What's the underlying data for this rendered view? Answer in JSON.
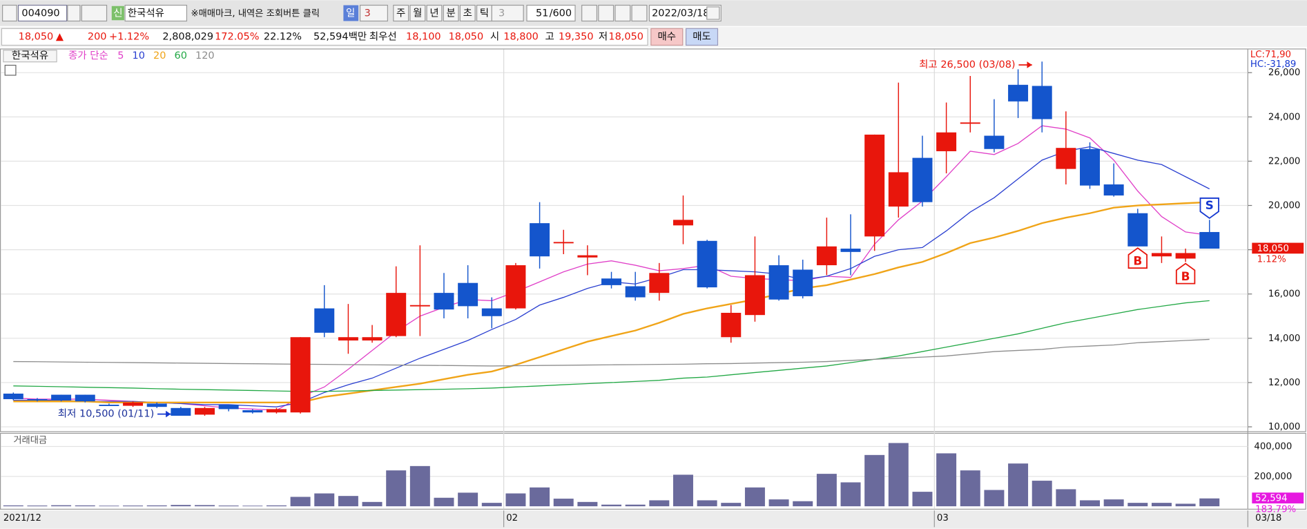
{
  "toolbar": {
    "code": "004090",
    "badge": "신",
    "name": "한국석유",
    "notice": "※매매마크, 내역은 조회버튼 클릭",
    "period": [
      "일",
      "3"
    ],
    "units": [
      "주",
      "월",
      "년",
      "분",
      "초",
      "틱"
    ],
    "unit_count": "3",
    "count": "51",
    "max": "/600",
    "date": "2022/03/18"
  },
  "quote": {
    "price": "18,050",
    "arrow": "▲",
    "change": "200",
    "change_pct": "+1.12%",
    "volume": "2,808,029",
    "volume_ratio": "172.05%",
    "turnover": "22.12%",
    "amount": "52,594백만",
    "best_label": "최우선",
    "ask": "18,100",
    "bid": "18,050",
    "open_label": "시",
    "open": "18,800",
    "high_label": "고",
    "high": "19,350",
    "low_label": "저",
    "low": "18,050",
    "buy": "매수",
    "sell": "매도"
  },
  "chart_data": {
    "type": "candlestick",
    "name": "한국석유",
    "ma_label": "종가 단순",
    "up_color": "#e8160c",
    "down_color": "#1455cc",
    "grid": true,
    "categories": [
      "2021/12",
      null,
      null,
      null,
      null,
      null,
      null,
      null,
      null,
      null,
      null,
      null,
      null,
      null,
      null,
      null,
      null,
      null,
      null,
      null,
      null,
      "02",
      null,
      null,
      null,
      null,
      null,
      null,
      null,
      null,
      null,
      null,
      null,
      null,
      null,
      null,
      null,
      null,
      null,
      "03",
      null,
      null,
      null,
      null,
      null,
      null,
      null,
      null,
      null,
      null,
      null
    ],
    "last_label": "03/18",
    "open": [
      11500,
      11250,
      11450,
      11450,
      11000,
      10950,
      11050,
      10850,
      10550,
      11000,
      10750,
      10650,
      10650,
      15350,
      13900,
      13900,
      14100,
      15450,
      16050,
      16500,
      15350,
      15350,
      19200,
      18300,
      17650,
      16700,
      16350,
      16050,
      19100,
      18400,
      14050,
      15050,
      17300,
      17100,
      17300,
      18050,
      18600,
      19950,
      22150,
      22450,
      23700,
      23150,
      25450,
      25400,
      21650,
      22550,
      20950,
      19650,
      17700,
      17600,
      18800
    ],
    "high": [
      11550,
      11300,
      11450,
      11450,
      11050,
      11150,
      11100,
      10900,
      10900,
      11000,
      10800,
      10850,
      14050,
      16400,
      15550,
      14600,
      17250,
      18200,
      16950,
      17300,
      15850,
      17400,
      20150,
      18900,
      18200,
      17000,
      17000,
      17400,
      20450,
      18450,
      15500,
      18600,
      17750,
      17550,
      19450,
      19600,
      23200,
      25550,
      23150,
      24650,
      25850,
      24800,
      26150,
      26500,
      24250,
      22850,
      21900,
      19850,
      18600,
      18050,
      19350
    ],
    "low": [
      11200,
      11150,
      11150,
      11100,
      10950,
      10900,
      10850,
      10500,
      10500,
      10700,
      10600,
      10600,
      10600,
      14050,
      13300,
      13800,
      14050,
      14100,
      14900,
      14900,
      14450,
      15300,
      17150,
      17800,
      16850,
      16250,
      15700,
      15700,
      18250,
      16250,
      13800,
      14750,
      15700,
      15800,
      16850,
      16850,
      17950,
      19450,
      19950,
      21450,
      23300,
      22400,
      23950,
      23300,
      20950,
      20750,
      20400,
      18150,
      17400,
      17450,
      18050
    ],
    "close": [
      11250,
      11200,
      11200,
      11150,
      10950,
      11100,
      10900,
      10500,
      10850,
      10800,
      10650,
      10800,
      14050,
      14250,
      14050,
      14050,
      16050,
      15500,
      15300,
      15450,
      15000,
      17300,
      17700,
      18350,
      17750,
      16400,
      15850,
      16950,
      19350,
      16300,
      15150,
      16850,
      15750,
      15900,
      18150,
      17900,
      23200,
      21500,
      20150,
      23300,
      23750,
      22550,
      24700,
      23900,
      22600,
      20900,
      20450,
      18150,
      17850,
      17850,
      18050
    ],
    "series": [
      {
        "name": "5",
        "color": "#e040c8",
        "values": [
          11300,
          11250,
          11250,
          11250,
          11200,
          11150,
          11100,
          11050,
          10950,
          10850,
          10800,
          10750,
          11350,
          11800,
          12600,
          13450,
          14300,
          15000,
          15400,
          15750,
          15700,
          16100,
          16550,
          17000,
          17350,
          17500,
          17300,
          17050,
          17150,
          17300,
          16800,
          16700,
          16650,
          16600,
          16800,
          16750,
          18250,
          19350,
          20200,
          21300,
          22450,
          22300,
          22800,
          23600,
          23450,
          23050,
          22050,
          20650,
          19500,
          18800,
          18650
        ]
      },
      {
        "name": "10",
        "color": "#2a3fd0",
        "values": [
          11200,
          11200,
          11200,
          11150,
          11150,
          11150,
          11100,
          11050,
          11000,
          11000,
          10950,
          10900,
          11100,
          11550,
          11900,
          12200,
          12650,
          13100,
          13500,
          13900,
          14400,
          14850,
          15500,
          15850,
          16250,
          16550,
          16450,
          16750,
          17100,
          17100,
          17050,
          17000,
          16900,
          16650,
          16800,
          17150,
          17700,
          18000,
          18100,
          18850,
          19700,
          20350,
          21200,
          22050,
          22450,
          22650,
          22350,
          22050,
          21850,
          21300,
          20750
        ]
      },
      {
        "name": "20",
        "color": "#f0a418",
        "values": [
          11150,
          11150,
          11150,
          11150,
          11100,
          11100,
          11100,
          11100,
          11100,
          11100,
          11100,
          11100,
          11100,
          11350,
          11500,
          11650,
          11800,
          11950,
          12150,
          12350,
          12500,
          12800,
          13150,
          13500,
          13850,
          14100,
          14350,
          14700,
          15100,
          15350,
          15550,
          15750,
          16000,
          16250,
          16400,
          16650,
          16900,
          17200,
          17450,
          17850,
          18300,
          18550,
          18850,
          19200,
          19450,
          19650,
          19900,
          20000,
          20050,
          20100,
          20150
        ]
      },
      {
        "name": "60",
        "color": "#22a845",
        "values": [
          11850,
          11830,
          11810,
          11790,
          11770,
          11750,
          11720,
          11700,
          11680,
          11660,
          11640,
          11620,
          11600,
          11600,
          11620,
          11640,
          11660,
          11680,
          11700,
          11720,
          11750,
          11800,
          11850,
          11900,
          11950,
          12000,
          12050,
          12100,
          12200,
          12250,
          12350,
          12450,
          12550,
          12650,
          12750,
          12900,
          13050,
          13200,
          13400,
          13600,
          13800,
          14000,
          14200,
          14450,
          14700,
          14900,
          15100,
          15300,
          15450,
          15600,
          15700
        ]
      },
      {
        "name": "120",
        "color": "#8c8c8c",
        "values": [
          12950,
          12940,
          12930,
          12920,
          12910,
          12900,
          12890,
          12880,
          12870,
          12860,
          12850,
          12840,
          12830,
          12820,
          12810,
          12800,
          12790,
          12780,
          12770,
          12760,
          12750,
          12760,
          12770,
          12780,
          12790,
          12800,
          12810,
          12820,
          12830,
          12850,
          12860,
          12880,
          12900,
          12920,
          12950,
          13000,
          13050,
          13100,
          13150,
          13200,
          13300,
          13400,
          13450,
          13500,
          13600,
          13650,
          13700,
          13800,
          13850,
          13900,
          13950
        ]
      }
    ],
    "ylim": [
      9800,
      27050
    ],
    "yticks": [
      {
        "value": 10000,
        "label": "10,000"
      },
      {
        "value": 12000,
        "label": "12,000"
      },
      {
        "value": 14000,
        "label": "14,000"
      },
      {
        "value": 16000,
        "label": "16,000"
      },
      {
        "value": 18000,
        "label": "18,000"
      },
      {
        "value": 20000,
        "label": "20,000"
      },
      {
        "value": 22000,
        "label": "22,000"
      },
      {
        "value": 24000,
        "label": "24,000"
      },
      {
        "value": 26000,
        "label": "26,000"
      }
    ],
    "corner_labels": [
      "LC:71,90",
      "HC:-31,89"
    ],
    "price_tag": {
      "value": 18050,
      "label": "18,050",
      "change": "1.12%"
    },
    "annotations": [
      {
        "label": "최고 26,500 (03/08)",
        "at": 43,
        "value": 26500,
        "color": "#e8160c"
      },
      {
        "label": "최저 10,500 (01/11)",
        "at": 7,
        "value": 10500,
        "color": "#1437d0"
      }
    ],
    "signals": [
      {
        "label": "B",
        "at": 47
      },
      {
        "label": "B",
        "at": 49
      },
      {
        "label": "S",
        "at": 50
      }
    ],
    "volume": {
      "title": "거래대금",
      "color": "#6a6a9c",
      "values": [
        6000,
        5000,
        7000,
        6000,
        4000,
        5000,
        6000,
        9000,
        8000,
        5000,
        4000,
        6000,
        63000,
        86000,
        69000,
        29000,
        240000,
        269000,
        57000,
        91000,
        23000,
        86000,
        126000,
        51000,
        29000,
        11000,
        11000,
        40000,
        211000,
        40000,
        23000,
        126000,
        46000,
        34000,
        217000,
        160000,
        343000,
        423000,
        97000,
        354000,
        240000,
        109000,
        286000,
        171000,
        114000,
        40000,
        46000,
        23000,
        23000,
        17000,
        52594
      ],
      "ylim": [
        0,
        485000
      ],
      "yticks": [
        {
          "value": 200000,
          "label": "200,000"
        },
        {
          "value": 400000,
          "label": "400,000"
        }
      ],
      "tag": {
        "value": 52594,
        "label": "52,594",
        "ratio": "183.79%"
      }
    }
  }
}
